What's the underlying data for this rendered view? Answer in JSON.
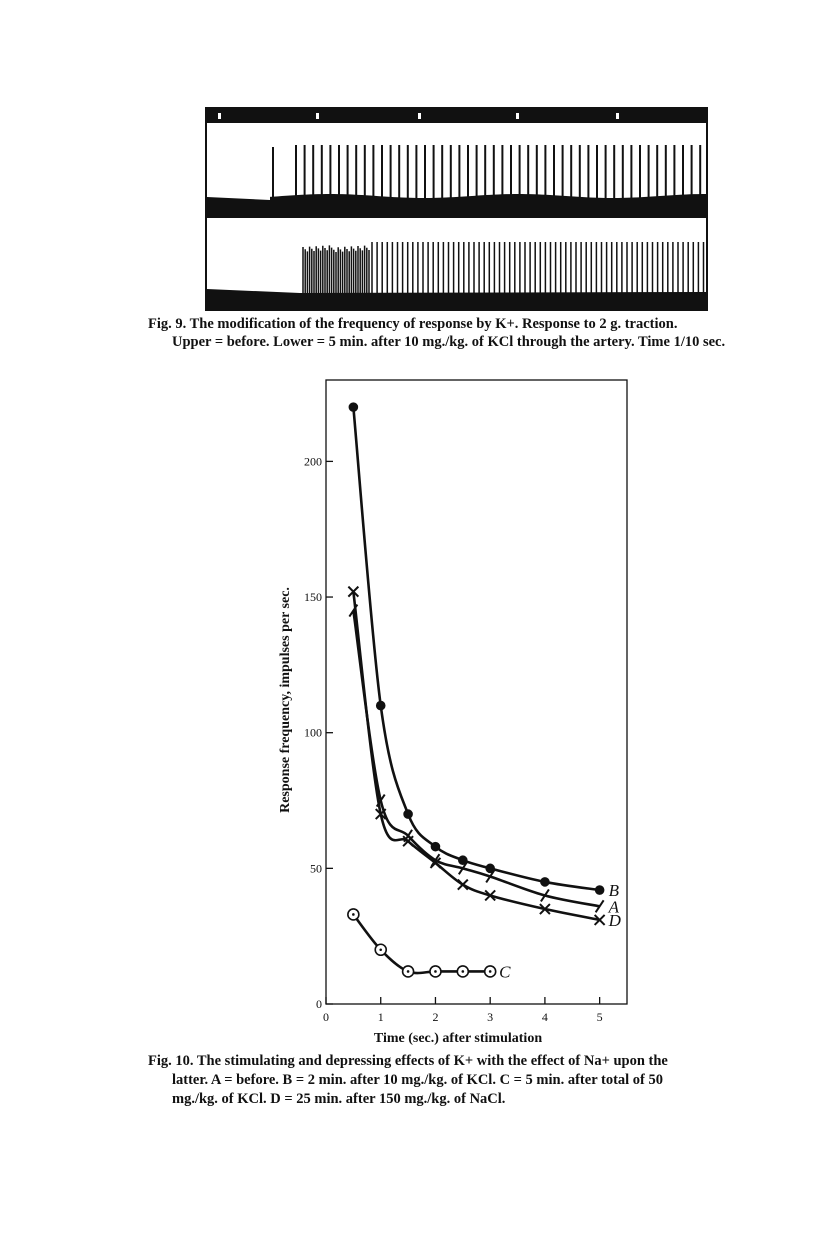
{
  "figure9": {
    "caption_lines": [
      "Fig. 9. The modification of the frequency of response by K+. Response to 2 g. traction.",
      "Upper = before. Lower = 5 min. after 10 mg./kg. of KCl through the artery. Time 1/10 sec."
    ]
  },
  "chart_data": {
    "type": "line",
    "x_label": "Time (sec.) after stimulation",
    "y_label": "Response frequency, impulses per sec.",
    "x": [
      0.5,
      1,
      1.5,
      2,
      2.5,
      3,
      4,
      5
    ],
    "series": [
      {
        "name": "B",
        "color": "#111111",
        "marker": "dot",
        "values": [
          220,
          110,
          70,
          58,
          53,
          50,
          45,
          42
        ]
      },
      {
        "name": "A",
        "color": "#111111",
        "marker": "slash",
        "values": [
          145,
          75,
          62,
          53,
          50,
          47,
          40,
          36
        ]
      },
      {
        "name": "D",
        "color": "#111111",
        "marker": "cross",
        "values": [
          152,
          70,
          60,
          52,
          44,
          40,
          35,
          31
        ]
      },
      {
        "name": "C",
        "color": "#111111",
        "marker": "circle-dot",
        "values": [
          33,
          20,
          12,
          12,
          12,
          12,
          null,
          null
        ]
      }
    ],
    "xlim": [
      0,
      5.5
    ],
    "ylim": [
      0,
      230
    ],
    "xticks": [
      0,
      1,
      2,
      3,
      4,
      5
    ],
    "yticks": [
      0,
      50,
      100,
      150,
      200
    ],
    "grid": false,
    "caption_lines": [
      "Fig. 10. The stimulating and depressing effects of K+ with the effect of Na+ upon the",
      "latter. A = before. B = 2 min. after 10 mg./kg. of KCl. C = 5 min. after total of 50",
      "mg./kg. of KCl. D = 25 min. after 150 mg./kg. of NaCl."
    ]
  }
}
